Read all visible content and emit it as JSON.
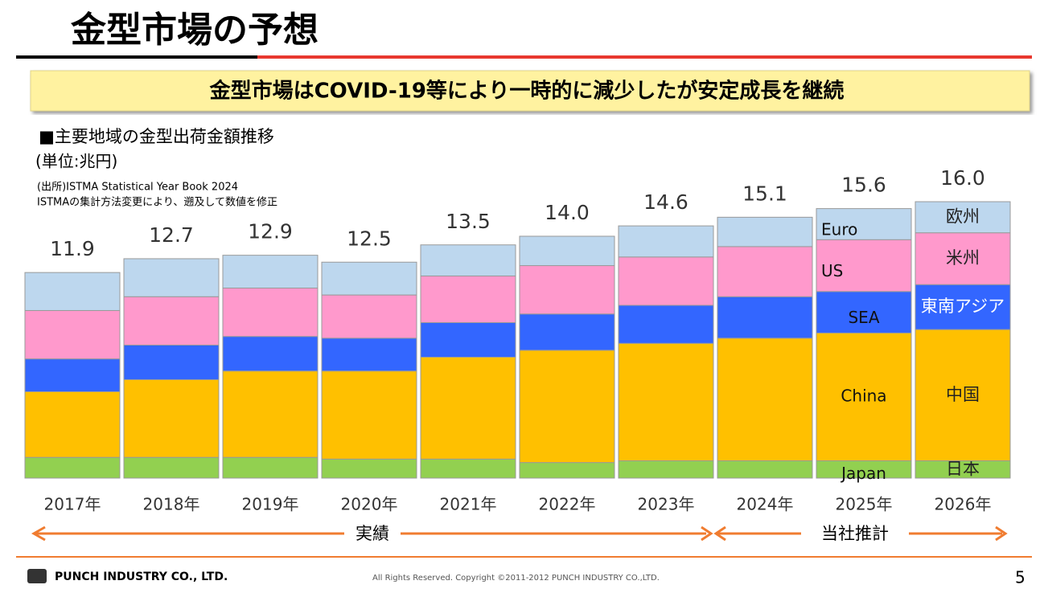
{
  "header": {
    "title": "金型市場の予想",
    "banner": "金型市場はCOVID-19等により一時的に減少したが安定成長を継続"
  },
  "notes": {
    "heading": "■主要地域の金型出荷金額推移",
    "unit": "(単位:兆円)",
    "source1": "(出所)ISTMA Statistical Year Book 2024",
    "source2": "ISTMAの集計方法変更により、遡及して数値を修正"
  },
  "chart_data": {
    "type": "stacked_bar",
    "categories": [
      "2017年",
      "2018年",
      "2019年",
      "2020年",
      "2021年",
      "2022年",
      "2023年",
      "2024年",
      "2025年",
      "2026年"
    ],
    "series": [
      {
        "name": "Japan",
        "label_ja": "日本",
        "color": "#92d050",
        "values": [
          1.2,
          1.2,
          1.2,
          1.1,
          1.1,
          0.9,
          1.0,
          1.0,
          1.0,
          1.0
        ]
      },
      {
        "name": "China",
        "label_ja": "中国",
        "color": "#ffc000",
        "values": [
          3.8,
          4.5,
          5.0,
          5.1,
          5.9,
          6.5,
          6.8,
          7.1,
          7.4,
          7.6
        ]
      },
      {
        "name": "SEA",
        "label_ja": "東南アジア",
        "color": "#3366ff",
        "values": [
          1.9,
          2.0,
          2.0,
          1.9,
          2.0,
          2.1,
          2.2,
          2.4,
          2.4,
          2.6
        ]
      },
      {
        "name": "US",
        "label_ja": "米州",
        "color": "#ff99cc",
        "values": [
          2.8,
          2.8,
          2.8,
          2.5,
          2.7,
          2.8,
          2.8,
          2.9,
          3.0,
          3.0
        ]
      },
      {
        "name": "Euro",
        "label_ja": "欧州",
        "color": "#bdd7ee",
        "values": [
          2.2,
          2.2,
          1.9,
          1.9,
          1.8,
          1.7,
          1.8,
          1.7,
          1.8,
          1.8
        ]
      }
    ],
    "totals": [
      11.9,
      12.7,
      12.9,
      12.5,
      13.5,
      14.0,
      14.6,
      15.1,
      15.6,
      16.0
    ],
    "total_labels": [
      "11.9",
      "12.7",
      "12.9",
      "12.5",
      "13.5",
      "14.0",
      "14.6",
      "15.1",
      "15.6",
      "16.0"
    ],
    "annotations": [
      "実績",
      "当社推計"
    ]
  },
  "footer": {
    "company": "PUNCH INDUSTRY CO., LTD.",
    "copyright": "All Rights Reserved. Copyright ©2011-2012 PUNCH INDUSTRY CO.,LTD.",
    "page": "5"
  }
}
